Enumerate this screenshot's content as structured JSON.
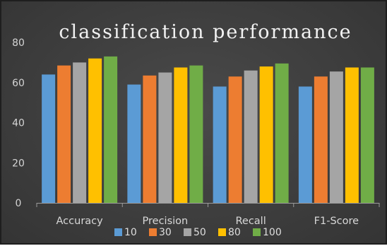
{
  "chart_data": {
    "type": "bar",
    "title": "classification performance",
    "categories": [
      "Accuracy",
      "Precision",
      "Recall",
      "F1-Score"
    ],
    "series": [
      {
        "name": "10",
        "color": "#5b9bd5",
        "values": [
          64,
          59,
          58,
          58
        ]
      },
      {
        "name": "30",
        "color": "#ed7d31",
        "values": [
          68.5,
          63.5,
          63,
          63
        ]
      },
      {
        "name": "50",
        "color": "#a5a5a5",
        "values": [
          70,
          65,
          66,
          65.5
        ]
      },
      {
        "name": "80",
        "color": "#ffc000",
        "values": [
          72,
          67.5,
          68,
          67.5
        ]
      },
      {
        "name": "100",
        "color": "#70ad47",
        "values": [
          73,
          68.5,
          69.5,
          67.5
        ]
      }
    ],
    "ylim": [
      0,
      80
    ],
    "yticks": [
      0,
      20,
      40,
      60,
      80
    ],
    "xlabel": "",
    "ylabel": "",
    "grid": false,
    "legend": "bottom"
  }
}
